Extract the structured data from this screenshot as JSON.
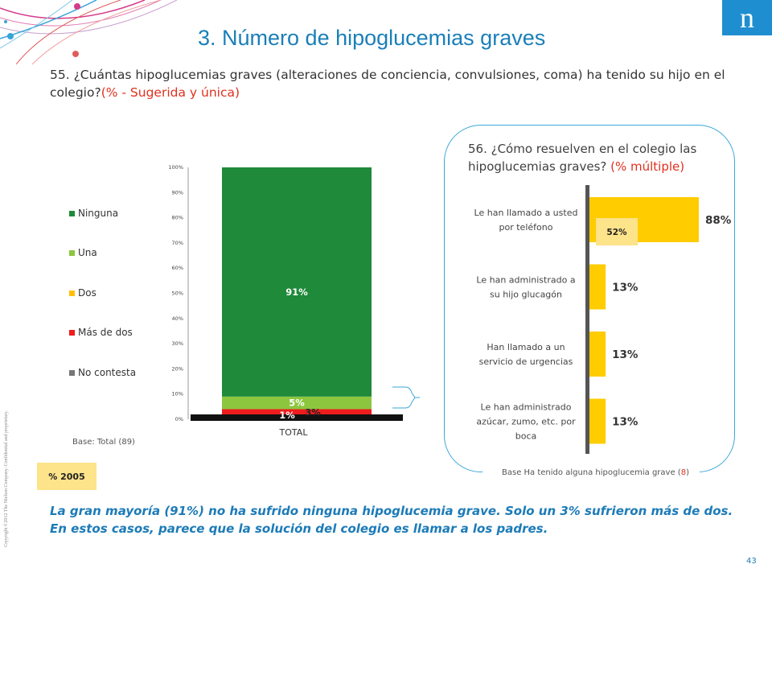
{
  "title": "3. Número de hipoglucemias graves",
  "copyright": "Copyright ©2012 The Nielsen Company. Confidential and proprietary.",
  "q55": {
    "text": "55. ¿Cuántas hipoglucemias graves (alteraciones de conciencia, convulsiones, coma) ha tenido su hijo en el colegio?",
    "note": "(% - Sugerida y única)"
  },
  "q56": {
    "text": "56. ¿Cómo resuelven en el colegio las hipoglucemias graves? ",
    "note": "(% múltiple)"
  },
  "base_left": "Base: Total (89)",
  "base_right": {
    "prefix": "Base Ha tenido alguna hipoglucemia grave (",
    "n": "8",
    "suffix": ")"
  },
  "badge": "% 2005",
  "conclusion": "La gran mayoría (91%) no ha sufrido ninguna hipoglucemia grave. Solo un 3% sufrieron más de dos. En estos casos, parece que la solución del colegio es llamar a los padres.",
  "page_number": "43",
  "colors": {
    "ninguna": "#1e8a3a",
    "una": "#8cc63f",
    "dos": "#ffc000",
    "mas_de_dos": "#ee1c1c",
    "no_contesta": "#777777",
    "bar_yellow": "#ffcc00",
    "badge_yellow": "#fde38a",
    "accent_blue": "#1c7bb8"
  },
  "chart_data": [
    {
      "type": "bar",
      "stacked": true,
      "categories": [
        "TOTAL"
      ],
      "ylim": [
        0,
        100
      ],
      "yticks": [
        "0%",
        "10%",
        "20%",
        "30%",
        "40%",
        "50%",
        "60%",
        "70%",
        "80%",
        "90%",
        "100%"
      ],
      "legend_position": "left",
      "series": [
        {
          "name": "Ninguna",
          "values": [
            91
          ],
          "label": "91%"
        },
        {
          "name": "Una",
          "values": [
            5
          ],
          "label": "5%"
        },
        {
          "name": "Dos",
          "values": [
            0
          ],
          "label": ""
        },
        {
          "name": "Más de dos",
          "values": [
            3
          ],
          "label": "3%"
        },
        {
          "name": "No contesta",
          "values": [
            1
          ],
          "label": "1%"
        }
      ]
    },
    {
      "type": "bar",
      "orientation": "horizontal",
      "categories": [
        "Le han llamado a usted por teléfono",
        "Le han administrado a su hijo glucagón",
        "Han llamado a un servicio de urgencias",
        "Le han administrado azúcar, zumo, etc. por boca"
      ],
      "values": [
        88,
        13,
        13,
        13
      ],
      "labels": [
        "88%",
        "13%",
        "13%",
        "13%"
      ],
      "comparison_2005": {
        "category": "Le han llamado a usted por teléfono",
        "value": 52,
        "label": "52%"
      }
    }
  ]
}
